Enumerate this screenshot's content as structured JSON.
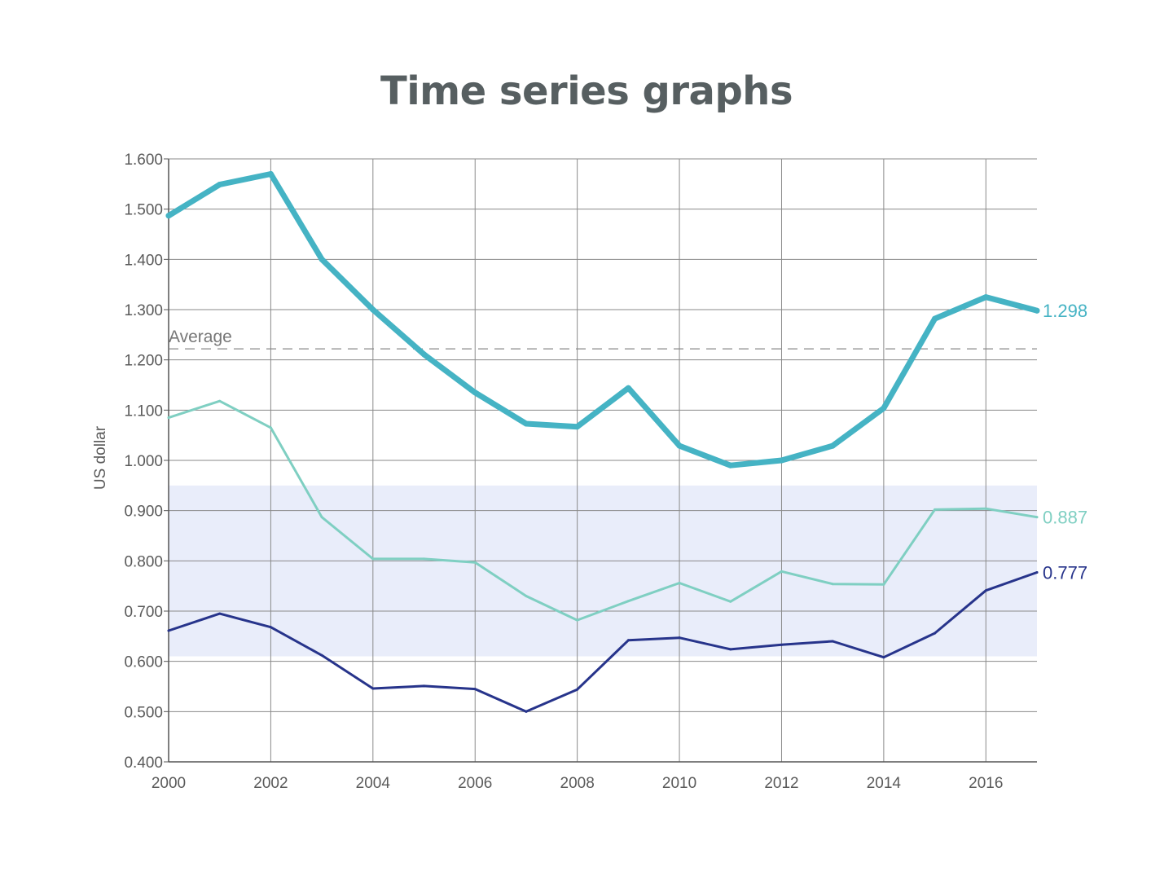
{
  "title": "Time series graphs",
  "chart_data": {
    "type": "line",
    "title": "Time series graphs",
    "xlabel": "",
    "ylabel": "US dollar",
    "xlim": [
      2000,
      2017
    ],
    "ylim": [
      0.4,
      1.6
    ],
    "x_ticks": [
      "2000",
      "2002",
      "2004",
      "2006",
      "2008",
      "2010",
      "2012",
      "2014",
      "2016"
    ],
    "y_ticks": [
      "0.400",
      "0.500",
      "0.600",
      "0.700",
      "0.800",
      "0.900",
      "1.000",
      "1.100",
      "1.200",
      "1.300",
      "1.400",
      "1.500",
      "1.600"
    ],
    "grid": true,
    "band": {
      "from": 0.61,
      "to": 0.95,
      "color": "#e9edfa"
    },
    "reference_line": {
      "label": "Average",
      "value": 1.222,
      "color": "#888888"
    },
    "x": [
      2000,
      2001,
      2002,
      2003,
      2004,
      2005,
      2006,
      2007,
      2008,
      2009,
      2010,
      2011,
      2012,
      2013,
      2014,
      2015,
      2016,
      2017
    ],
    "series": [
      {
        "values": [
          1.487,
          1.549,
          1.57,
          1.4,
          1.3,
          1.211,
          1.135,
          1.073,
          1.067,
          1.144,
          1.029,
          0.99,
          1.0,
          1.029,
          1.104,
          1.282,
          1.325,
          1.298
        ],
        "color": "#45b3c4",
        "width": 7,
        "end_label": "1.298"
      },
      {
        "values": [
          1.085,
          1.118,
          1.065,
          0.887,
          0.804,
          0.804,
          0.797,
          0.73,
          0.682,
          0.72,
          0.756,
          0.719,
          0.779,
          0.754,
          0.753,
          0.902,
          0.904,
          0.887
        ],
        "color": "#7fcfc2",
        "width": 3,
        "end_label": "0.887"
      },
      {
        "values": [
          0.661,
          0.695,
          0.668,
          0.612,
          0.546,
          0.551,
          0.545,
          0.5,
          0.544,
          0.642,
          0.647,
          0.624,
          0.633,
          0.64,
          0.608,
          0.656,
          0.741,
          0.777
        ],
        "color": "#27348b",
        "width": 3,
        "end_label": "0.777"
      }
    ]
  }
}
